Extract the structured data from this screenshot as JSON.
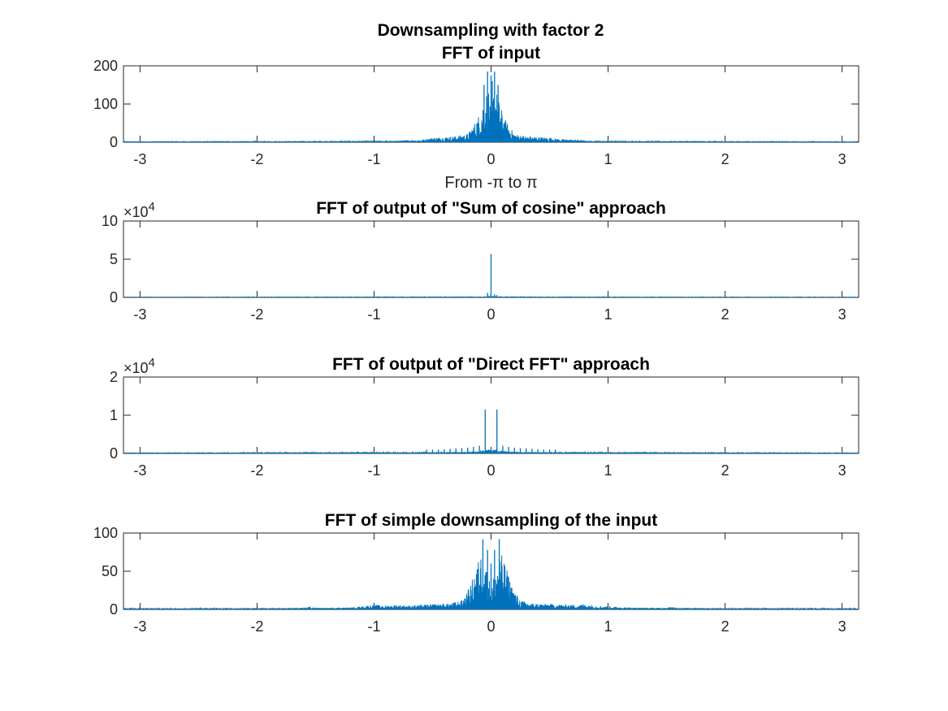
{
  "figure": {
    "suptitle": "Downsampling with factor 2",
    "background": "#ffffff",
    "series_color": "#0072bd"
  },
  "chart_data": [
    {
      "type": "line",
      "title": "FFT of input",
      "xlabel": "From -π to π",
      "ylabel": "",
      "xlim": [
        -3.14159,
        3.14159
      ],
      "ylim": [
        0,
        200
      ],
      "xticks": [
        -3,
        -2,
        -1,
        0,
        1,
        2,
        3
      ],
      "xtick_labels": [
        "-3",
        "-2",
        "-1",
        "0",
        "1",
        "2",
        "3"
      ],
      "yticks": [
        0,
        100,
        200
      ],
      "ytick_labels": [
        "0",
        "100",
        "200"
      ],
      "exponent_label": "",
      "spikes": [
        [
          -0.03,
          185
        ],
        [
          0.0,
          175
        ],
        [
          0.03,
          185
        ],
        [
          -0.06,
          150
        ],
        [
          0.06,
          150
        ],
        [
          0.01,
          160
        ]
      ],
      "envelope": [
        [
          -3.14,
          1
        ],
        [
          -1.5,
          1.5
        ],
        [
          -0.9,
          2
        ],
        [
          -0.75,
          5
        ],
        [
          -0.6,
          6
        ],
        [
          -0.5,
          12
        ],
        [
          -0.4,
          14
        ],
        [
          -0.3,
          16
        ],
        [
          -0.2,
          22
        ],
        [
          -0.12,
          60
        ],
        [
          -0.08,
          95
        ],
        [
          -0.05,
          130
        ],
        [
          -0.02,
          140
        ],
        [
          0.0,
          70
        ],
        [
          0.02,
          140
        ],
        [
          0.05,
          130
        ],
        [
          0.08,
          95
        ],
        [
          0.12,
          60
        ],
        [
          0.2,
          22
        ],
        [
          0.3,
          16
        ],
        [
          0.4,
          14
        ],
        [
          0.5,
          12
        ],
        [
          0.6,
          8
        ],
        [
          0.75,
          7
        ],
        [
          0.8,
          4
        ],
        [
          0.9,
          2
        ],
        [
          1.5,
          1.5
        ],
        [
          3.14,
          1
        ]
      ]
    },
    {
      "type": "line",
      "title": "FFT of output of \"Sum of cosine\" approach",
      "xlabel": "",
      "ylabel": "",
      "xlim": [
        -3.14159,
        3.14159
      ],
      "ylim": [
        0,
        10
      ],
      "xticks": [
        -3,
        -2,
        -1,
        0,
        1,
        2,
        3
      ],
      "xtick_labels": [
        "-3",
        "-2",
        "-1",
        "0",
        "1",
        "2",
        "3"
      ],
      "yticks": [
        0,
        5,
        10
      ],
      "ytick_labels": [
        "0",
        "5",
        "10"
      ],
      "exponent_label": "×10",
      "exponent_power": "4",
      "spikes": [
        [
          0.0,
          5.7
        ],
        [
          -0.03,
          0.6
        ],
        [
          0.03,
          0.4
        ],
        [
          0.05,
          0.3
        ]
      ],
      "envelope": [
        [
          -3.14,
          0.03
        ],
        [
          -0.05,
          0.05
        ],
        [
          0.0,
          0.1
        ],
        [
          0.05,
          0.05
        ],
        [
          3.14,
          0.03
        ]
      ]
    },
    {
      "type": "line",
      "title": "FFT of output of \"Direct FFT\" approach",
      "xlabel": "",
      "ylabel": "",
      "xlim": [
        -3.14159,
        3.14159
      ],
      "ylim": [
        0,
        2
      ],
      "xticks": [
        -3,
        -2,
        -1,
        0,
        1,
        2,
        3
      ],
      "xtick_labels": [
        "-3",
        "-2",
        "-1",
        "0",
        "1",
        "2",
        "3"
      ],
      "yticks": [
        0,
        1,
        2
      ],
      "ytick_labels": [
        "0",
        "1",
        "2"
      ],
      "exponent_label": "×10",
      "exponent_power": "4",
      "spikes": [
        [
          -0.05,
          1.15
        ],
        [
          0.05,
          1.15
        ],
        [
          -0.55,
          0.1
        ],
        [
          -0.5,
          0.1
        ],
        [
          -0.45,
          0.1
        ],
        [
          -0.4,
          0.11
        ],
        [
          -0.35,
          0.12
        ],
        [
          -0.3,
          0.13
        ],
        [
          -0.25,
          0.14
        ],
        [
          -0.2,
          0.15
        ],
        [
          -0.15,
          0.17
        ],
        [
          -0.1,
          0.2
        ],
        [
          0.1,
          0.2
        ],
        [
          0.15,
          0.17
        ],
        [
          0.2,
          0.15
        ],
        [
          0.25,
          0.14
        ],
        [
          0.3,
          0.13
        ],
        [
          0.35,
          0.12
        ],
        [
          0.4,
          0.11
        ],
        [
          0.45,
          0.1
        ],
        [
          0.5,
          0.1
        ],
        [
          0.55,
          0.1
        ]
      ],
      "envelope": [
        [
          -3.14,
          0.01
        ],
        [
          -0.6,
          0.02
        ],
        [
          -0.2,
          0.04
        ],
        [
          -0.08,
          0.08
        ],
        [
          0.0,
          0.12
        ],
        [
          0.08,
          0.08
        ],
        [
          0.2,
          0.04
        ],
        [
          0.6,
          0.02
        ],
        [
          3.14,
          0.01
        ]
      ]
    },
    {
      "type": "line",
      "title": "FFT of simple downsampling of the input",
      "xlabel": "",
      "ylabel": "",
      "xlim": [
        -3.14159,
        3.14159
      ],
      "ylim": [
        0,
        100
      ],
      "xticks": [
        -3,
        -2,
        -1,
        0,
        1,
        2,
        3
      ],
      "xtick_labels": [
        "-3",
        "-2",
        "-1",
        "0",
        "1",
        "2",
        "3"
      ],
      "yticks": [
        0,
        50,
        100
      ],
      "ytick_labels": [
        "0",
        "50",
        "100"
      ],
      "exponent_label": "",
      "spikes": [
        [
          -0.07,
          92
        ],
        [
          -0.03,
          78
        ],
        [
          0.03,
          78
        ],
        [
          0.07,
          92
        ],
        [
          0.0,
          60
        ]
      ],
      "envelope": [
        [
          -3.14,
          1
        ],
        [
          -2.3,
          1
        ],
        [
          -1.6,
          2
        ],
        [
          -1.55,
          4
        ],
        [
          -1.5,
          2
        ],
        [
          -1.2,
          2.5
        ],
        [
          -1.0,
          6
        ],
        [
          -0.9,
          5
        ],
        [
          -0.8,
          6
        ],
        [
          -0.7,
          5
        ],
        [
          -0.5,
          7
        ],
        [
          -0.35,
          8
        ],
        [
          -0.25,
          12
        ],
        [
          -0.18,
          30
        ],
        [
          -0.12,
          60
        ],
        [
          -0.08,
          75
        ],
        [
          -0.04,
          55
        ],
        [
          0.0,
          30
        ],
        [
          0.04,
          55
        ],
        [
          0.08,
          75
        ],
        [
          0.12,
          60
        ],
        [
          0.18,
          30
        ],
        [
          0.25,
          12
        ],
        [
          0.35,
          8
        ],
        [
          0.5,
          7
        ],
        [
          0.7,
          6
        ],
        [
          0.8,
          7
        ],
        [
          0.9,
          5
        ],
        [
          1.0,
          4
        ],
        [
          1.2,
          2.5
        ],
        [
          1.5,
          2
        ],
        [
          1.55,
          4
        ],
        [
          1.6,
          2
        ],
        [
          2.3,
          1
        ],
        [
          3.14,
          1
        ]
      ]
    }
  ]
}
